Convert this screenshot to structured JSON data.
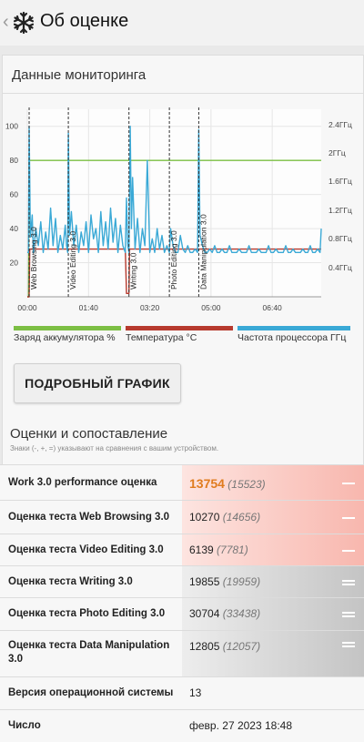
{
  "header": {
    "back_glyph": "‹",
    "title": "Об оценке",
    "logo_icon": "snowflake-icon"
  },
  "monitoring": {
    "title": "Данные мониторинга",
    "chart_data": {
      "type": "line",
      "x_ticks": [
        "00:00",
        "01:40",
        "03:20",
        "05:00",
        "06:40"
      ],
      "x_range": [
        0,
        480
      ],
      "y_left_ticks": [
        "20",
        "40",
        "60",
        "80",
        "100"
      ],
      "y_left_range": [
        0,
        110
      ],
      "y_right_ticks": [
        "0.4ГГц",
        "0.8ГГц",
        "1.2ГГц",
        "1.6ГГц",
        "2ГГц",
        "2.4ГГц"
      ],
      "sections": [
        {
          "name": "Web Browsing 3.0",
          "x": 3
        },
        {
          "name": "Video Editing 3.0",
          "x": 67
        },
        {
          "name": "Writing 3.0",
          "x": 166
        },
        {
          "name": "Photo Editing 3.0",
          "x": 232
        },
        {
          "name": "Data Manipulation 3.0",
          "x": 280
        }
      ],
      "series": [
        {
          "name": "Заряд аккумулятора %",
          "color": "#7cbf44",
          "x": [
            0,
            2,
            3,
            480
          ],
          "y": [
            0,
            0,
            80,
            80
          ]
        },
        {
          "name": "Температура °C",
          "color": "#b73a2e",
          "x": [
            0,
            3,
            4,
            160,
            162,
            166,
            167,
            480
          ],
          "y": [
            0,
            0,
            28,
            28,
            2,
            2,
            28,
            28
          ]
        },
        {
          "name": "Частота процессора ГГц",
          "color": "#3aa9d6",
          "x": [
            0,
            2,
            3,
            5,
            8,
            10,
            14,
            18,
            22,
            26,
            30,
            34,
            38,
            42,
            46,
            50,
            54,
            58,
            62,
            64,
            66,
            67,
            69,
            72,
            76,
            80,
            84,
            88,
            92,
            96,
            100,
            104,
            108,
            112,
            116,
            120,
            124,
            128,
            132,
            136,
            140,
            144,
            148,
            152,
            156,
            160,
            162,
            164,
            166,
            168,
            170,
            172,
            176,
            180,
            184,
            188,
            192,
            196,
            200,
            204,
            208,
            212,
            216,
            220,
            224,
            228,
            232,
            234,
            238,
            242,
            246,
            250,
            254,
            258,
            262,
            266,
            270,
            274,
            278,
            280,
            282,
            286,
            290,
            294,
            298,
            302,
            306,
            310,
            314,
            318,
            322,
            326,
            330,
            334,
            338,
            342,
            346,
            350,
            354,
            358,
            362,
            366,
            370,
            374,
            378,
            382,
            386,
            390,
            394,
            398,
            402,
            406,
            410,
            414,
            418,
            422,
            426,
            430,
            434,
            438,
            442,
            446,
            450,
            454,
            458,
            462,
            466,
            470,
            474,
            478,
            480
          ],
          "y": [
            26,
            26,
            100,
            35,
            48,
            26,
            40,
            30,
            44,
            26,
            38,
            28,
            52,
            30,
            46,
            26,
            36,
            28,
            42,
            30,
            26,
            96,
            36,
            50,
            30,
            42,
            26,
            38,
            30,
            44,
            26,
            48,
            34,
            40,
            26,
            50,
            30,
            44,
            28,
            52,
            32,
            46,
            26,
            42,
            30,
            26,
            58,
            30,
            26,
            100,
            40,
            70,
            28,
            46,
            26,
            40,
            30,
            80,
            26,
            34,
            26,
            40,
            28,
            36,
            26,
            30,
            26,
            40,
            30,
            26,
            26,
            36,
            28,
            26,
            30,
            26,
            26,
            28,
            26,
            98,
            36,
            30,
            26,
            26,
            28,
            26,
            30,
            26,
            26,
            28,
            26,
            26,
            30,
            26,
            26,
            26,
            28,
            26,
            26,
            26,
            30,
            26,
            26,
            26,
            28,
            26,
            26,
            26,
            30,
            26,
            26,
            28,
            26,
            26,
            26,
            30,
            26,
            26,
            28,
            26,
            26,
            26,
            28,
            26,
            26,
            30,
            26,
            26,
            28,
            26,
            40
          ]
        }
      ]
    },
    "legend": [
      {
        "label": "Заряд аккумулятора %",
        "color": "#7cbf44"
      },
      {
        "label": "Температура °C",
        "color": "#b73a2e"
      },
      {
        "label": "Частота процессора ГГц",
        "color": "#3aa9d6"
      }
    ],
    "detail_button": "ПОДРОБНЫЙ ГРАФИК"
  },
  "scores": {
    "title": "Оценки и сопоставление",
    "subtitle": "Знаки (-, +, =) указывают на сравнения с вашим устройством.",
    "rows": [
      {
        "label": "Work 3.0 performance оценка",
        "value": "13754",
        "compare": "(15523)",
        "mark": "minus",
        "tone": "red",
        "highlight": true
      },
      {
        "label": "Оценка теста Web Browsing 3.0",
        "value": "10270",
        "compare": "(14656)",
        "mark": "minus",
        "tone": "red"
      },
      {
        "label": "Оценка теста Video Editing 3.0",
        "value": "6139",
        "compare": "(7781)",
        "mark": "minus",
        "tone": "red"
      },
      {
        "label": "Оценка теста Writing 3.0",
        "value": "19855",
        "compare": "(19959)",
        "mark": "equal",
        "tone": "gray"
      },
      {
        "label": "Оценка теста Photo Editing 3.0",
        "value": "30704",
        "compare": "(33438)",
        "mark": "equal",
        "tone": "gray"
      },
      {
        "label": "Оценка теста Data Manipulation 3.0",
        "value": "12805",
        "compare": "(12057)",
        "mark": "equal",
        "tone": "gray"
      },
      {
        "label": "Версия операционной системы",
        "value": "13",
        "compare": "",
        "mark": "",
        "tone": "none"
      },
      {
        "label": "Число",
        "value": "февр. 27 2023 18:48",
        "compare": "",
        "mark": "",
        "tone": "none"
      }
    ]
  }
}
